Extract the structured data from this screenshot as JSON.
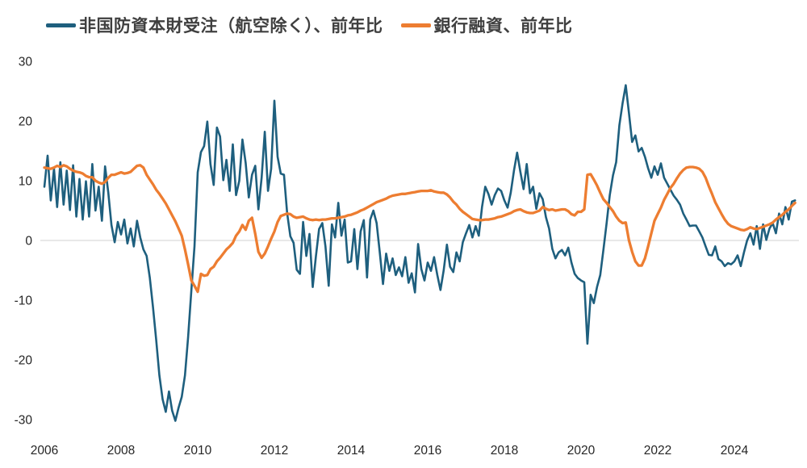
{
  "legend": {
    "series1_label": "非国防資本財受注（航空除く）、前年比",
    "series2_label": "銀行融資、前年比"
  },
  "colors": {
    "series1": "#1E5F7E",
    "series2": "#ED7D31",
    "gridline": "#D9D9D9",
    "axis_text": "#262626",
    "legend_text": "#3F3F3F"
  },
  "chart_data": {
    "type": "line",
    "title": "",
    "xlabel": "",
    "ylabel": "",
    "x_start_year": 2006,
    "x_frequency": "monthly",
    "x_end": "2025-08",
    "ylim": [
      -30,
      30
    ],
    "yticks": [
      30,
      20,
      10,
      0,
      -10,
      -20,
      -30
    ],
    "xticks": [
      2006,
      2008,
      2010,
      2012,
      2014,
      2016,
      2018,
      2020,
      2022,
      2024
    ],
    "grid": "zero-line-only",
    "legend_position": "top",
    "series": [
      {
        "name": "非国防資本財受注（航空除く）、前年比",
        "color": "#1E5F7E",
        "values": [
          9,
          14.2,
          6.7,
          12,
          5.6,
          13.1,
          6,
          11.7,
          5.1,
          12.6,
          4,
          10.3,
          3.5,
          9.9,
          4,
          12.8,
          5,
          9,
          3.3,
          12.4,
          8,
          2.6,
          -0.3,
          3.1,
          1,
          3.5,
          -0.5,
          2,
          -1,
          3.3,
          0.5,
          -1.5,
          -2.6,
          -6.2,
          -11.2,
          -16.6,
          -22.6,
          -26.6,
          -28.7,
          -25.3,
          -28.5,
          -30.2,
          -28,
          -26.2,
          -22.6,
          -16.2,
          -8.4,
          -1,
          11.4,
          14.8,
          15.8,
          19.9,
          12.8,
          9.3,
          18.9,
          17.4,
          10.1,
          13.5,
          8.3,
          16.1,
          7.6,
          10,
          16.9,
          13,
          7.2,
          11,
          12.5,
          5.2,
          10.5,
          18.2,
          8.3,
          12,
          23.4,
          14,
          11.2,
          11,
          4.6,
          0.7,
          -0.4,
          -4.9,
          -5.6,
          3.1,
          -2.6,
          1.1,
          -7.8,
          -2.6,
          1.9,
          2.9,
          -1,
          -7.6,
          2.7,
          0.5,
          6.3,
          0.8,
          3.5,
          -3.7,
          -3.5,
          1.9,
          -4.8,
          1.5,
          3.4,
          -6.2,
          3.5,
          5,
          2.9,
          -2,
          -7.3,
          -2.2,
          -5.1,
          -3,
          -5.8,
          -4.5,
          -6,
          -2.8,
          -7.1,
          -5.5,
          -8.7,
          -0.6,
          -4.8,
          -6.7,
          -3.7,
          -5.1,
          -2.8,
          -5.8,
          -8.3,
          -5,
          -0.7,
          -4.4,
          -5.3,
          -2,
          -3.5,
          -0.3,
          1.2,
          2.6,
          0.5,
          2.4,
          0.8,
          5.6,
          9,
          7.8,
          6,
          7.6,
          8.7,
          8.3,
          6.7,
          5.5,
          8,
          11.7,
          14.7,
          11.5,
          8.6,
          12.8,
          7.9,
          9,
          5.3,
          7.9,
          6.9,
          3.9,
          2,
          -1.4,
          -3,
          -2,
          -1.6,
          -2.5,
          -1.2,
          -3.7,
          -5.6,
          -6.3,
          -6.7,
          -7,
          -17.3,
          -9.1,
          -10.5,
          -7.8,
          -5.8,
          -1.6,
          2.9,
          7.6,
          10.9,
          13.1,
          19.3,
          23,
          26,
          21.3,
          16.5,
          17.6,
          14.9,
          15.5,
          14,
          12.1,
          10.5,
          12.4,
          11,
          12.9,
          10.5,
          9.5,
          8.5,
          7.5,
          6.8,
          6,
          4.5,
          3.5,
          2.4,
          2.5,
          2.5,
          1.5,
          0.5,
          -1,
          -2.4,
          -2.5,
          -1,
          -3.1,
          -3.5,
          -4.3,
          -3.8,
          -4,
          -3.5,
          -2.5,
          -4.3,
          -2,
          0,
          1.2,
          -0.7,
          2.4,
          -1.4,
          2.7,
          0.1,
          2,
          2.9,
          1.2,
          4.5,
          2.7,
          5.6,
          3.5,
          6.5,
          6.7
        ]
      },
      {
        "name": "銀行融資、前年比",
        "color": "#ED7D31",
        "values": [
          12.2,
          12.1,
          12,
          12.2,
          12.5,
          12.3,
          12.6,
          12.4,
          12,
          11.7,
          11.5,
          11.4,
          11.2,
          10.8,
          10.6,
          10.6,
          10,
          9.7,
          9.5,
          9.8,
          10.5,
          11,
          11,
          11.2,
          11.4,
          11.2,
          11.3,
          11.5,
          12,
          12.5,
          12.6,
          12.2,
          11,
          10.2,
          9.4,
          8.5,
          7.8,
          7,
          6.2,
          5.2,
          4.2,
          3.2,
          2,
          0.8,
          -1.5,
          -4,
          -6.7,
          -7.6,
          -8.6,
          -5.6,
          -5.9,
          -5.8,
          -4.8,
          -4.4,
          -3.5,
          -2.9,
          -2.2,
          -1.5,
          -1,
          -0.4,
          0.8,
          1.5,
          2.6,
          1.8,
          3.3,
          3.8,
          1.1,
          -1.9,
          -2.9,
          -2.2,
          -1,
          0.3,
          1.5,
          3.1,
          4.1,
          4.3,
          4.5,
          4.4,
          4,
          3.8,
          3.9,
          4,
          3.7,
          3.5,
          3.4,
          3.5,
          3.4,
          3.5,
          3.5,
          3.6,
          3.7,
          3.7,
          3.8,
          3.9,
          4,
          4.2,
          4.3,
          4.5,
          4.7,
          5,
          5.2,
          5.5,
          5.8,
          6.1,
          6.4,
          6.6,
          6.8,
          7,
          7.3,
          7.5,
          7.6,
          7.7,
          7.8,
          7.8,
          7.9,
          8,
          8.1,
          8.2,
          8.3,
          8.3,
          8.3,
          8.4,
          8.2,
          8.1,
          8,
          8,
          7.7,
          7.2,
          6.5,
          6,
          5.3,
          4.8,
          4.4,
          4,
          3.6,
          3.5,
          3.4,
          3.4,
          3.5,
          3.5,
          3.6,
          3.7,
          3.9,
          4,
          4.2,
          4.4,
          4.6,
          4.9,
          5.1,
          5.2,
          4.9,
          4.7,
          4.6,
          4.6,
          4.8,
          5,
          5.6,
          5.3,
          5.1,
          5.2,
          5,
          5.1,
          5.2,
          5.2,
          4.9,
          4.4,
          4.2,
          4.8,
          4.8,
          5.2,
          11,
          11.1,
          10.2,
          9.2,
          8,
          6.9,
          6.3,
          5.6,
          4.9,
          4,
          3.3,
          2.9,
          3,
          0,
          -1.9,
          -3.5,
          -4.2,
          -4.2,
          -3,
          -1,
          1.2,
          3.3,
          4.4,
          5.5,
          6.8,
          7.8,
          8.8,
          9.5,
          10.4,
          11.2,
          11.8,
          12.2,
          12.3,
          12.3,
          12.2,
          12,
          11.5,
          10.5,
          9.1,
          7.8,
          6.4,
          5.4,
          4.4,
          3.5,
          2.8,
          2.4,
          2.2,
          2,
          1.8,
          1.7,
          1.9,
          2.2,
          2,
          1.9,
          2.1,
          2.3,
          2.5,
          2.7,
          3,
          3.5,
          3.9,
          4.3,
          4.8,
          5.2,
          5.8,
          6.3
        ]
      }
    ]
  }
}
